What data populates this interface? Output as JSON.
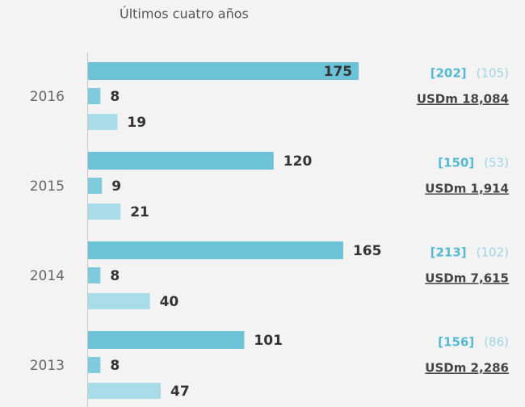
{
  "chart_data": {
    "type": "bar",
    "orientation": "horizontal",
    "title": "Últimos cuatro años",
    "categories": [
      "2016",
      "2015",
      "2014",
      "2013"
    ],
    "series": [
      {
        "color": "#6cc3d7",
        "values": [
          175,
          120,
          165,
          101
        ]
      },
      {
        "color": "#7fcadc",
        "values": [
          8,
          9,
          8,
          8
        ]
      },
      {
        "color": "#a9dce9",
        "values": [
          19,
          21,
          40,
          47
        ]
      }
    ],
    "xlim": [
      0,
      200
    ],
    "annotations": [
      {
        "bracket": "[202]",
        "paren": "(105)",
        "amount": "USDm 18,084"
      },
      {
        "bracket": "[150]",
        "paren": "(53)",
        "amount": "USDm 1,914"
      },
      {
        "bracket": "[213]",
        "paren": "(102)",
        "amount": "USDm 7,615"
      },
      {
        "bracket": "[156]",
        "paren": "(86)",
        "amount": "USDm 2,286"
      }
    ]
  }
}
